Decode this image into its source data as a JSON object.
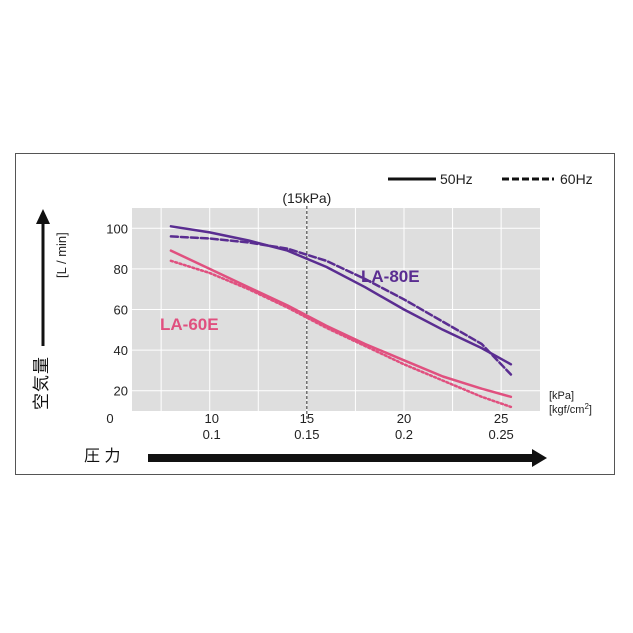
{
  "chart_data": {
    "type": "line",
    "x_kpa": [
      8,
      10,
      12,
      14,
      16,
      18,
      20,
      22,
      24,
      25.5
    ],
    "series": [
      {
        "name": "LA-80E",
        "freq": "50Hz",
        "style": "solid",
        "color": "#5a2d91",
        "values": [
          101,
          98,
          94,
          89,
          81,
          71,
          60,
          50,
          41,
          33
        ]
      },
      {
        "name": "LA-80E",
        "freq": "60Hz",
        "style": "dashed",
        "color": "#5a2d91",
        "values": [
          96,
          95,
          93,
          90,
          84,
          75,
          65,
          54,
          43,
          28
        ]
      },
      {
        "name": "LA-60E",
        "freq": "50Hz",
        "style": "solid",
        "color": "#e0507f",
        "values": [
          89,
          80,
          71,
          62,
          52,
          43,
          35,
          27,
          21,
          17
        ]
      },
      {
        "name": "LA-60E",
        "freq": "60Hz",
        "style": "dotted",
        "color": "#e0507f",
        "values": [
          84,
          78,
          70,
          61,
          51,
          42,
          33,
          25,
          17,
          12
        ]
      }
    ],
    "x_kpa_ticks": [
      "0",
      "10",
      "15",
      "20",
      "25"
    ],
    "x_kgf_ticks": [
      "0.1",
      "0.15",
      "0.2",
      "0.25"
    ],
    "y_ticks": [
      "20",
      "40",
      "60",
      "80",
      "100"
    ],
    "xlim": [
      6,
      27
    ],
    "ylim": [
      10,
      110
    ],
    "x_unit_kpa": "[kPa]",
    "x_unit_kgf": "[kgf/cm",
    "x_unit_kgf_sup": "2",
    "x_unit_kgf_end": "]",
    "y_unit": "[L / min]",
    "ylabel": "空気量",
    "xlabel": "圧 力",
    "marker_label": "(15kPa)",
    "marker_x": 15,
    "label_la80": "LA-80E",
    "label_la60": "LA-60E",
    "legend": {
      "solid": "50Hz",
      "dashed": "60Hz"
    },
    "colors": {
      "plot_bg": "#dedede",
      "grid": "#ffffff",
      "la80": "#5a2d91",
      "la60": "#e0507f"
    }
  }
}
